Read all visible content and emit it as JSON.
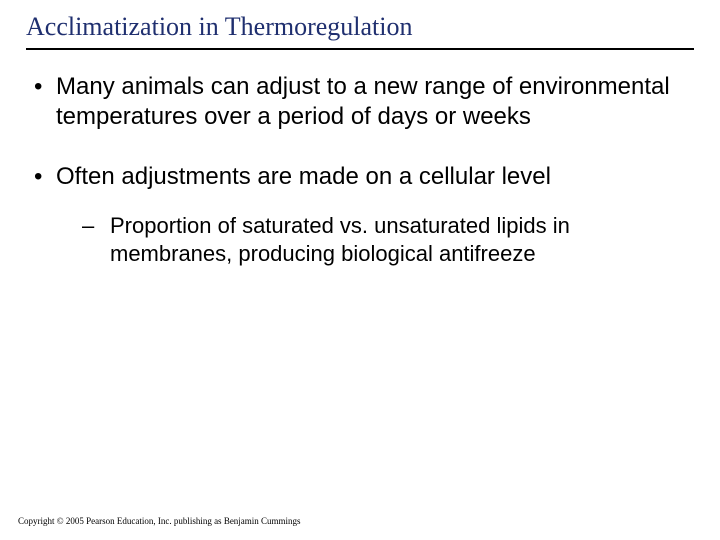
{
  "title": "Acclimatization in Thermoregulation",
  "bullets": [
    {
      "text": "Many animals can adjust to a new range of environmental temperatures over a period of days or weeks"
    },
    {
      "text": "Often adjustments are made on a cellular level",
      "children": [
        {
          "text": "Proportion of saturated vs. unsaturated lipids in membranes, producing biological antifreeze"
        }
      ]
    }
  ],
  "copyright": "Copyright © 2005 Pearson Education, Inc. publishing as Benjamin Cummings",
  "colors": {
    "title_color": "#1f2f6f",
    "rule_color": "#000000",
    "text_color": "#000000",
    "background": "#ffffff"
  },
  "typography": {
    "title_font": "Times New Roman",
    "title_size_pt": 20,
    "body_font": "Arial",
    "body_size_pt": 18,
    "sub_size_pt": 16,
    "copyright_font": "Times New Roman",
    "copyright_size_pt": 7
  }
}
